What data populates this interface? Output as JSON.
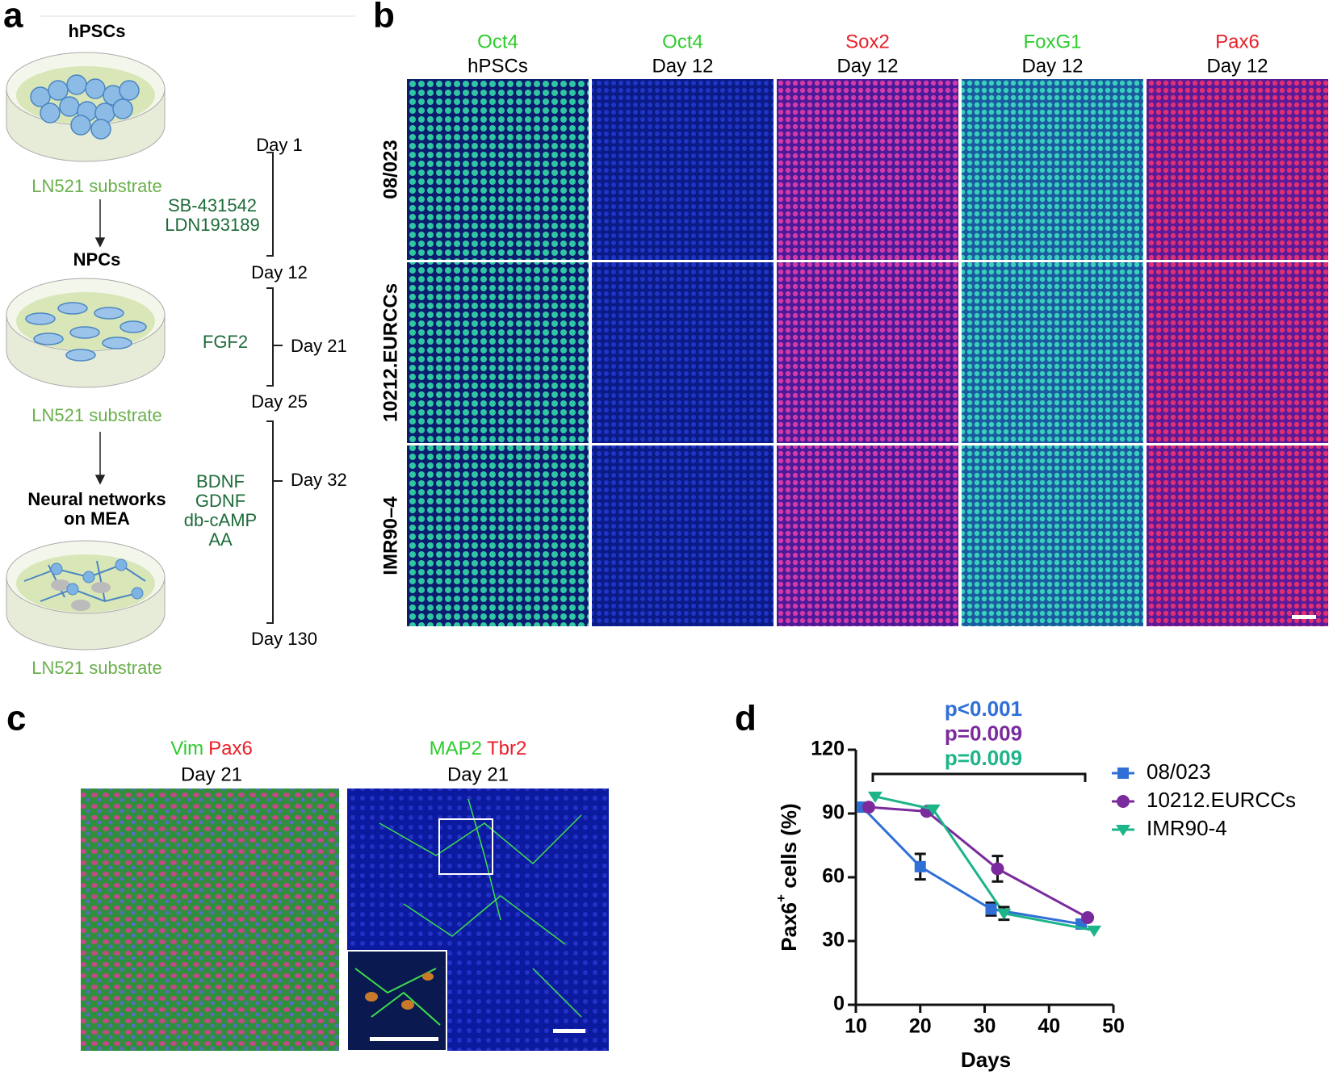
{
  "panel_labels": [
    "a",
    "b",
    "c",
    "d"
  ],
  "panel_a": {
    "stages": [
      {
        "title": [
          "hPSCs"
        ],
        "substrate": "LN521 substrate"
      },
      {
        "title": [
          "NPCs"
        ],
        "substrate": "LN521 substrate"
      },
      {
        "title": [
          "Neural networks",
          "on MEA"
        ],
        "substrate": "LN521 substrate"
      }
    ],
    "days": [
      "Day 1",
      "Day 12",
      "Day 21",
      "Day 25",
      "Day 32",
      "Day 130"
    ],
    "factors": [
      [
        "SB-431542",
        "LDN193189"
      ],
      [
        "FGF2"
      ],
      [
        "BDNF",
        "GDNF",
        "db-cAMP",
        "AA"
      ]
    ]
  },
  "panel_b": {
    "columns": [
      {
        "marker": "Oct4",
        "condition": "hPSCs"
      },
      {
        "marker": "Oct4",
        "condition": "Day 12"
      },
      {
        "marker": "Sox2",
        "condition": "Day 12"
      },
      {
        "marker": "FoxG1",
        "condition": "Day 12"
      },
      {
        "marker": "Pax6",
        "condition": "Day 12"
      }
    ],
    "rows": [
      "08/023",
      "10212.EURCCs",
      "IMR90–4"
    ]
  },
  "panel_c": {
    "images": [
      {
        "markers": [
          "Vim",
          "Pax6"
        ],
        "condition": "Day 21"
      },
      {
        "markers": [
          "MAP2",
          "Tbr2"
        ],
        "condition": "Day 21"
      }
    ]
  },
  "chart_data": {
    "type": "line",
    "xlabel": "Days",
    "ylabel": [
      "Pax6",
      "+",
      " cells (%)"
    ],
    "xlim": [
      10,
      50
    ],
    "xticks": [
      10,
      20,
      30,
      40,
      50
    ],
    "ylim": [
      0,
      120
    ],
    "yticks": [
      0,
      30,
      60,
      90,
      120
    ],
    "annotations": [
      "p<0.001",
      "p=0.009",
      "p=0.009"
    ],
    "legend": "right",
    "series": [
      {
        "name": "08/023",
        "color": "#2f6fd6",
        "marker": "square",
        "x": [
          11,
          20,
          31,
          45
        ],
        "values": [
          93,
          65,
          45,
          38
        ],
        "errors": [
          null,
          6,
          3,
          2
        ]
      },
      {
        "name": "10212.EURCCs",
        "color": "#7a2a9c",
        "marker": "circle",
        "x": [
          12,
          21,
          32,
          46
        ],
        "values": [
          93,
          91,
          64,
          41
        ],
        "errors": [
          null,
          null,
          6,
          null
        ]
      },
      {
        "name": "IMR90-4",
        "color": "#1db489",
        "marker": "triangle",
        "x": [
          13,
          22,
          33,
          47
        ],
        "values": [
          98,
          92,
          43,
          35
        ],
        "errors": [
          null,
          null,
          3,
          null
        ]
      }
    ]
  }
}
